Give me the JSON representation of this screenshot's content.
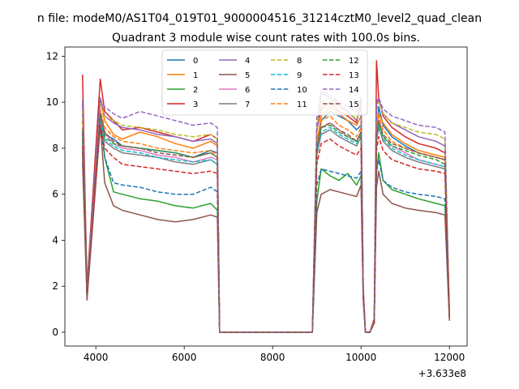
{
  "figure": {
    "suptitle": "n file: modeM0/AS1T04_019T01_9000004516_31214cztM0_level2_quad_clean"
  },
  "chart_data": {
    "type": "line",
    "title": "Quadrant 3 module wise count rates with 100.0s bins.",
    "xlabel": "",
    "ylabel": "",
    "x_offset_label": "+3.633e8",
    "xlim": [
      3300,
      12400
    ],
    "ylim": [
      -0.6,
      12.4
    ],
    "xticks": [
      4000,
      6000,
      8000,
      10000,
      12000
    ],
    "yticks": [
      0,
      2,
      4,
      6,
      8,
      10,
      12
    ],
    "legend": {
      "placement": "top-center",
      "ncol": 4
    },
    "x": [
      3700,
      3800,
      4100,
      4200,
      4400,
      4600,
      5000,
      5400,
      5800,
      6200,
      6600,
      6750,
      6800,
      7000,
      8000,
      8900,
      9000,
      9100,
      9300,
      9500,
      9700,
      9900,
      10000,
      10050,
      10100,
      10200,
      10300,
      10350,
      10400,
      10500,
      10700,
      11000,
      11300,
      11700,
      11900,
      12000
    ],
    "series": [
      {
        "name": "0",
        "color": "#1f77b4",
        "dash": "solid",
        "values": [
          8.6,
          1.9,
          9.3,
          8.6,
          8.4,
          8.1,
          8.0,
          7.9,
          7.8,
          7.6,
          7.9,
          7.8,
          0,
          0,
          0,
          0,
          7.8,
          9.2,
          9.6,
          9.4,
          9.2,
          8.8,
          9.0,
          1.8,
          0,
          0,
          0.5,
          8.6,
          9.8,
          9.0,
          8.5,
          8.1,
          7.8,
          7.6,
          7.5,
          0.7
        ]
      },
      {
        "name": "1",
        "color": "#ff7f0e",
        "dash": "solid",
        "values": [
          9.5,
          1.8,
          10.1,
          9.2,
          8.6,
          8.4,
          8.7,
          8.5,
          8.2,
          8.0,
          8.3,
          8.1,
          0,
          0,
          0,
          0,
          8.2,
          9.4,
          9.8,
          9.5,
          9.2,
          9.0,
          9.4,
          1.8,
          0,
          0,
          0.5,
          8.9,
          9.5,
          9.1,
          8.6,
          8.2,
          7.9,
          7.7,
          7.6,
          0.7
        ]
      },
      {
        "name": "2",
        "color": "#2ca02c",
        "dash": "solid",
        "values": [
          7.8,
          1.6,
          9.6,
          7.6,
          6.1,
          6.0,
          5.8,
          5.7,
          5.5,
          5.4,
          5.6,
          5.3,
          0,
          0,
          0,
          0,
          5.7,
          7.1,
          6.8,
          6.6,
          6.9,
          6.4,
          6.8,
          1.5,
          0,
          0,
          0.4,
          6.9,
          7.8,
          6.6,
          6.2,
          6.0,
          5.8,
          5.6,
          5.5,
          0.6
        ]
      },
      {
        "name": "3",
        "color": "#d62728",
        "dash": "solid",
        "values": [
          11.2,
          2.0,
          11.0,
          9.6,
          9.2,
          8.8,
          8.9,
          8.7,
          8.5,
          8.3,
          8.6,
          8.4,
          0,
          0,
          0,
          0,
          8.8,
          9.7,
          10.0,
          9.6,
          9.4,
          9.1,
          10.2,
          2.0,
          0,
          0,
          0.6,
          11.8,
          10.2,
          9.4,
          8.9,
          8.5,
          8.2,
          8.0,
          7.8,
          0.8
        ]
      },
      {
        "name": "4",
        "color": "#9467bd",
        "dash": "solid",
        "values": [
          9.9,
          1.9,
          10.2,
          9.4,
          9.1,
          8.9,
          8.8,
          8.6,
          8.5,
          8.3,
          8.4,
          8.2,
          0,
          0,
          0,
          0,
          8.7,
          10.4,
          10.2,
          9.9,
          9.6,
          9.2,
          9.9,
          1.9,
          0,
          0,
          0.5,
          9.9,
          10.1,
          9.5,
          9.1,
          8.8,
          8.5,
          8.3,
          8.1,
          0.7
        ]
      },
      {
        "name": "5",
        "color": "#8c564b",
        "dash": "solid",
        "values": [
          7.4,
          1.4,
          9.0,
          6.5,
          5.5,
          5.3,
          5.1,
          4.9,
          4.8,
          4.9,
          5.1,
          5.0,
          0,
          0,
          0,
          0,
          5.2,
          6.0,
          6.2,
          6.1,
          6.0,
          5.9,
          6.4,
          1.4,
          0,
          0,
          0.4,
          6.3,
          7.0,
          6.0,
          5.6,
          5.4,
          5.3,
          5.2,
          5.1,
          0.5
        ]
      },
      {
        "name": "6",
        "color": "#e377c2",
        "dash": "solid",
        "values": [
          8.9,
          1.8,
          9.6,
          8.7,
          8.2,
          8.0,
          7.9,
          7.7,
          7.6,
          7.4,
          7.6,
          7.5,
          0,
          0,
          0,
          0,
          7.9,
          8.9,
          9.1,
          8.8,
          8.5,
          8.3,
          8.7,
          1.7,
          0,
          0,
          0.5,
          8.6,
          9.2,
          8.5,
          8.1,
          7.8,
          7.5,
          7.3,
          7.2,
          0.7
        ]
      },
      {
        "name": "7",
        "color": "#7f7f7f",
        "dash": "solid",
        "values": [
          8.4,
          1.7,
          9.3,
          8.3,
          8.0,
          7.8,
          7.7,
          7.6,
          7.4,
          7.3,
          7.5,
          7.3,
          0,
          0,
          0,
          0,
          7.7,
          8.6,
          8.8,
          8.5,
          8.3,
          8.1,
          8.5,
          1.7,
          0,
          0,
          0.5,
          8.3,
          8.9,
          8.3,
          7.9,
          7.6,
          7.4,
          7.2,
          7.1,
          0.7
        ]
      },
      {
        "name": "8",
        "color": "#bcbd22",
        "dash": "dashed",
        "values": [
          9.6,
          1.9,
          10.0,
          9.4,
          9.2,
          9.0,
          8.9,
          8.8,
          8.6,
          8.5,
          8.6,
          8.4,
          0,
          0,
          0,
          0,
          8.9,
          10.0,
          10.2,
          9.8,
          9.5,
          9.3,
          9.7,
          1.9,
          0,
          0,
          0.5,
          9.6,
          10.0,
          9.5,
          9.1,
          8.9,
          8.7,
          8.6,
          8.4,
          0.7
        ]
      },
      {
        "name": "9",
        "color": "#17becf",
        "dash": "dashed",
        "values": [
          8.6,
          1.8,
          9.2,
          8.4,
          8.1,
          7.9,
          7.8,
          7.6,
          7.5,
          7.4,
          7.5,
          7.3,
          0,
          0,
          0,
          0,
          7.8,
          8.7,
          8.9,
          8.6,
          8.4,
          8.2,
          8.6,
          1.7,
          0,
          0,
          0.5,
          8.4,
          9.0,
          8.4,
          8.0,
          7.7,
          7.5,
          7.3,
          7.2,
          0.7
        ]
      },
      {
        "name": "10",
        "color": "#1f77b4",
        "dash": "dashed",
        "values": [
          7.9,
          1.7,
          9.0,
          7.6,
          6.5,
          6.4,
          6.3,
          6.1,
          6.0,
          6.0,
          6.3,
          6.1,
          0,
          0,
          0,
          0,
          6.4,
          7.1,
          7.0,
          6.9,
          6.8,
          6.7,
          7.0,
          1.6,
          0,
          0,
          0.4,
          7.0,
          7.5,
          6.6,
          6.3,
          6.1,
          6.0,
          5.9,
          5.8,
          0.6
        ]
      },
      {
        "name": "11",
        "color": "#ff7f0e",
        "dash": "dashed",
        "values": [
          9.2,
          1.9,
          9.7,
          8.9,
          8.5,
          8.3,
          8.2,
          8.0,
          7.9,
          7.8,
          7.9,
          7.7,
          0,
          0,
          0,
          0,
          8.3,
          9.2,
          9.4,
          9.0,
          8.8,
          8.5,
          8.9,
          1.8,
          0,
          0,
          0.5,
          8.8,
          9.4,
          8.8,
          8.3,
          8.0,
          7.8,
          7.6,
          7.5,
          0.7
        ]
      },
      {
        "name": "12",
        "color": "#2ca02c",
        "dash": "dashed",
        "values": [
          8.8,
          1.8,
          9.5,
          8.5,
          8.2,
          8.1,
          8.0,
          7.9,
          7.8,
          7.6,
          7.8,
          7.6,
          0,
          0,
          0,
          0,
          8.0,
          8.9,
          9.0,
          8.7,
          8.5,
          8.3,
          8.7,
          1.7,
          0,
          0,
          0.5,
          8.5,
          9.1,
          8.5,
          8.1,
          7.9,
          7.7,
          7.5,
          7.3,
          0.7
        ]
      },
      {
        "name": "13",
        "color": "#d62728",
        "dash": "dashed",
        "values": [
          8.1,
          1.7,
          9.0,
          8.0,
          7.6,
          7.3,
          7.2,
          7.1,
          7.0,
          6.9,
          7.0,
          6.9,
          0,
          0,
          0,
          0,
          7.3,
          8.2,
          8.4,
          8.1,
          7.9,
          7.7,
          8.0,
          1.6,
          0,
          0,
          0.4,
          7.9,
          8.5,
          7.9,
          7.5,
          7.3,
          7.1,
          7.0,
          6.9,
          0.6
        ]
      },
      {
        "name": "14",
        "color": "#9467bd",
        "dash": "dashed",
        "values": [
          10.1,
          2.0,
          10.1,
          9.8,
          9.5,
          9.3,
          9.6,
          9.4,
          9.2,
          9.0,
          9.1,
          8.9,
          0,
          0,
          0,
          0,
          9.3,
          10.5,
          10.3,
          10.0,
          9.8,
          9.6,
          10.1,
          2.0,
          0,
          0,
          0.5,
          10.0,
          10.2,
          9.7,
          9.4,
          9.2,
          9.0,
          8.9,
          8.7,
          0.8
        ]
      },
      {
        "name": "15",
        "color": "#8c564b",
        "dash": "dashed",
        "values": [
          8.7,
          1.8,
          9.5,
          8.7,
          8.3,
          8.1,
          8.0,
          7.8,
          7.7,
          7.6,
          7.8,
          7.6,
          0,
          0,
          0,
          0,
          8.0,
          8.9,
          9.1,
          8.8,
          8.6,
          8.3,
          8.7,
          1.7,
          0,
          0,
          0.5,
          8.6,
          9.2,
          8.6,
          8.2,
          8.0,
          7.8,
          7.6,
          7.5,
          0.7
        ]
      }
    ]
  }
}
